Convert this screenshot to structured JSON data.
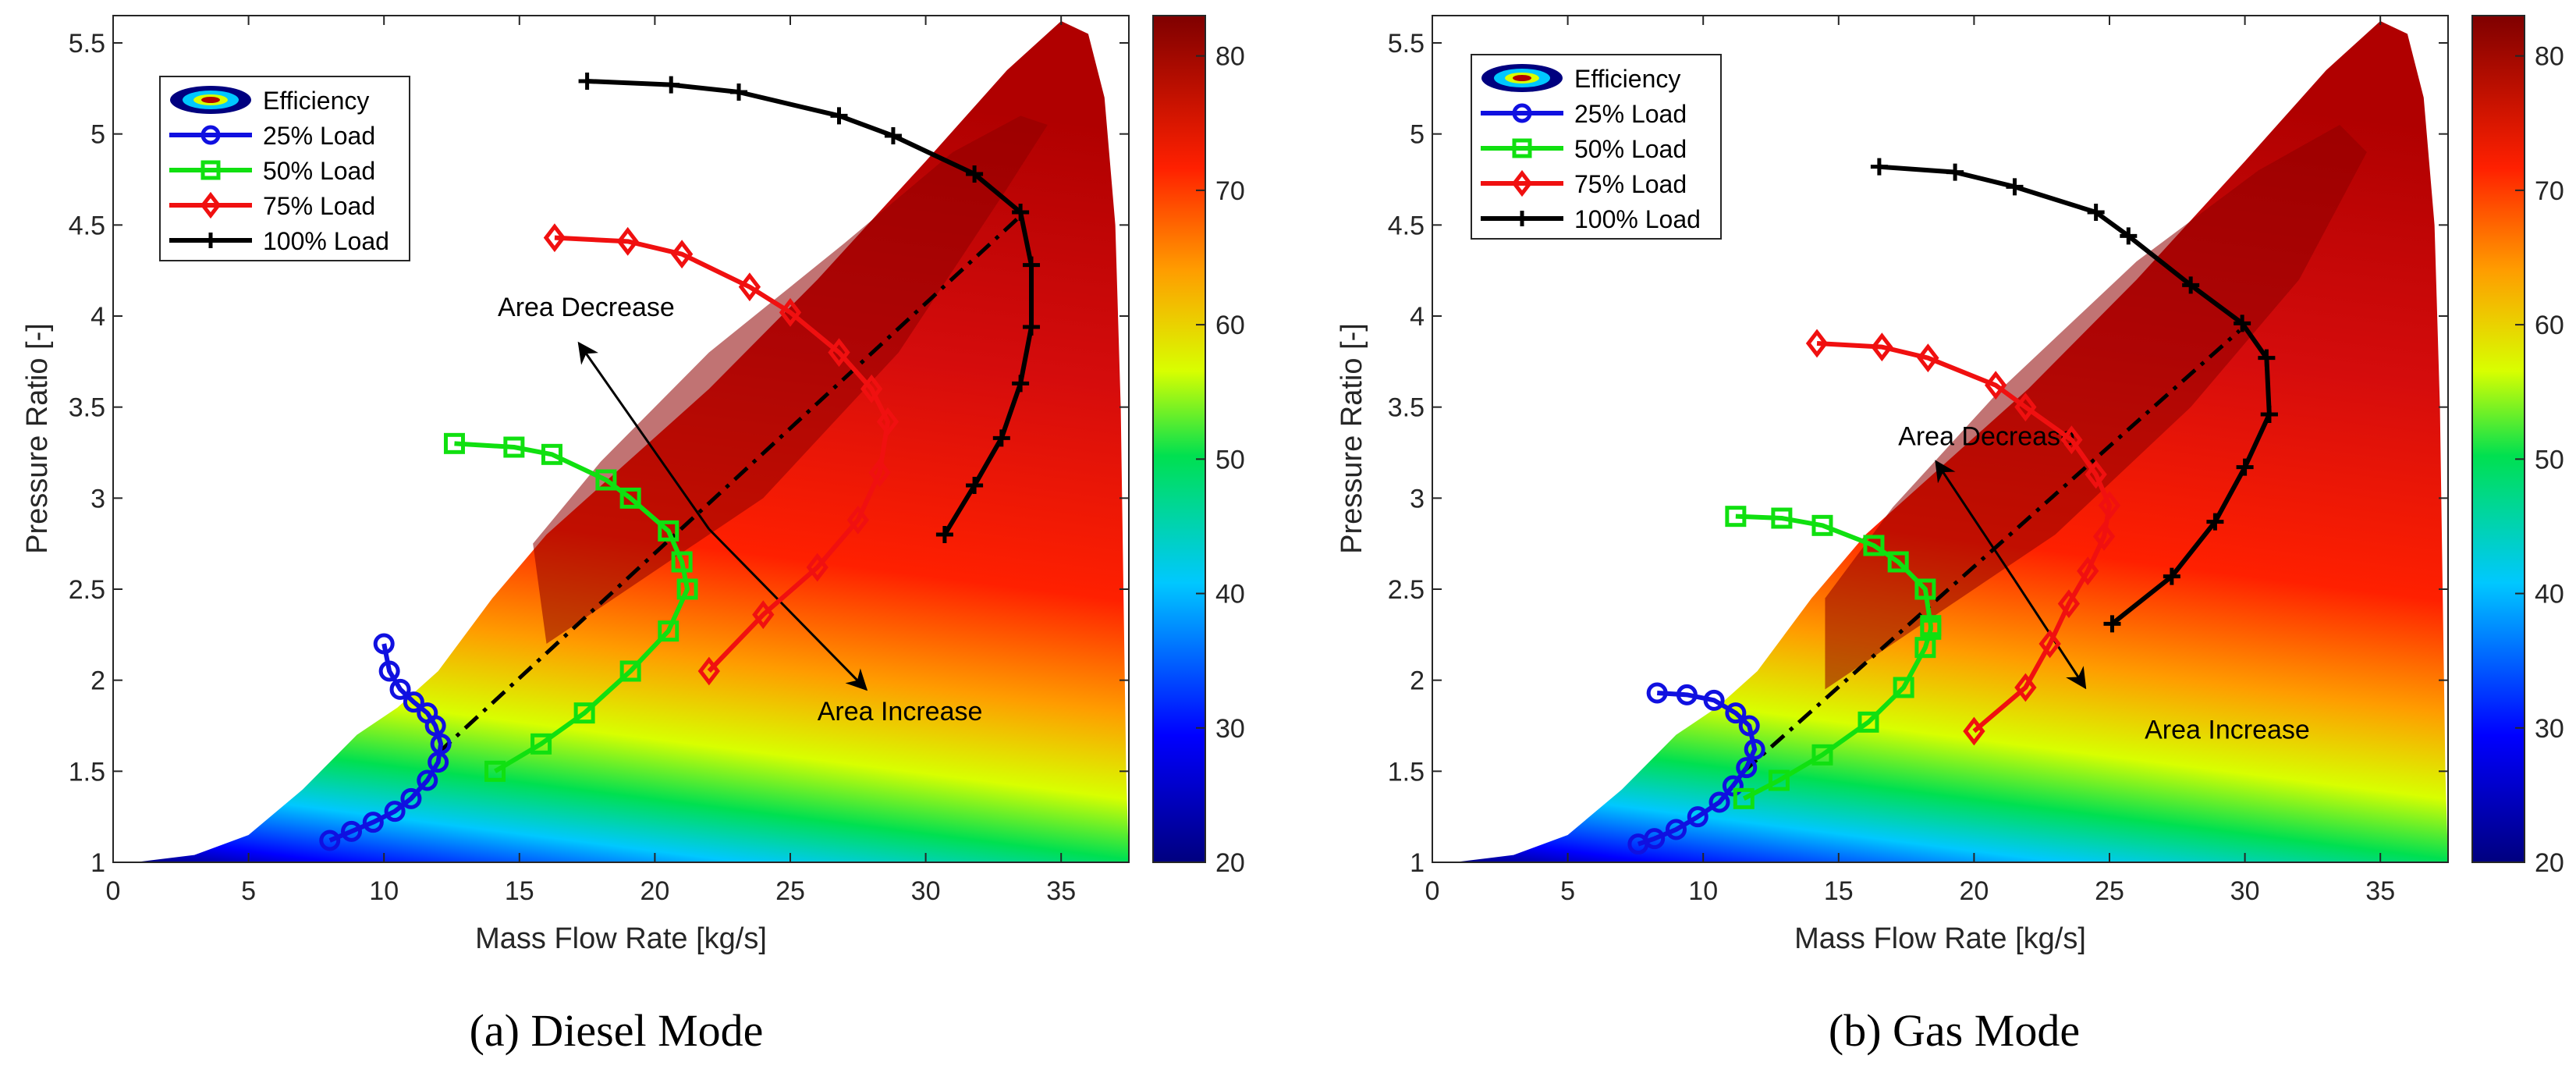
{
  "chart_data": [
    {
      "type": "contour",
      "caption": "(a) Diesel Mode",
      "xlabel": "Mass Flow Rate [kg/s]",
      "ylabel": "Pressure Ratio [-]",
      "xlim": [
        0,
        37.5
      ],
      "ylim": [
        1,
        5.65
      ],
      "xticks": [
        "0",
        "5",
        "10",
        "15",
        "20",
        "25",
        "30",
        "35"
      ],
      "xtick_values": [
        0,
        5,
        10,
        15,
        20,
        25,
        30,
        35
      ],
      "yticks": [
        "1",
        "1.5",
        "2",
        "2.5",
        "3",
        "3.5",
        "4",
        "4.5",
        "5",
        "5.5"
      ],
      "ytick_values": [
        1,
        1.5,
        2,
        2.5,
        3,
        3.5,
        4,
        4.5,
        5,
        5.5
      ],
      "colorbar": {
        "min": 20,
        "max": 83,
        "ticks": [
          "20",
          "30",
          "40",
          "50",
          "60",
          "70",
          "80"
        ],
        "tick_values": [
          20,
          30,
          40,
          50,
          60,
          70,
          80
        ]
      },
      "legend": [
        "Efficiency",
        "25% Load",
        "50% Load",
        "75% Load",
        "100% Load"
      ],
      "map_boundary": [
        [
          0.8,
          1.0
        ],
        [
          3,
          1.04
        ],
        [
          5,
          1.15
        ],
        [
          7,
          1.4
        ],
        [
          9,
          1.7
        ],
        [
          10.5,
          1.85
        ],
        [
          12,
          2.05
        ],
        [
          14,
          2.45
        ],
        [
          16,
          2.8
        ],
        [
          19,
          3.2
        ],
        [
          22,
          3.6
        ],
        [
          26,
          4.2
        ],
        [
          30,
          4.85
        ],
        [
          33,
          5.35
        ],
        [
          35,
          5.62
        ],
        [
          36,
          5.55
        ],
        [
          36.6,
          5.2
        ],
        [
          37,
          4.5
        ],
        [
          37.2,
          3.5
        ],
        [
          37.3,
          2.5
        ],
        [
          37.4,
          1.5
        ],
        [
          37.5,
          1.0
        ]
      ],
      "core_region": [
        [
          16,
          2.2
        ],
        [
          19,
          2.5
        ],
        [
          24,
          3.0
        ],
        [
          29,
          3.8
        ],
        [
          33,
          4.7
        ],
        [
          34.5,
          5.05
        ],
        [
          33.5,
          5.1
        ],
        [
          31,
          4.9
        ],
        [
          27,
          4.4
        ],
        [
          22,
          3.8
        ],
        [
          18,
          3.2
        ],
        [
          15.5,
          2.75
        ]
      ],
      "series": [
        {
          "name": "25% Load",
          "color": "#1010e0",
          "marker": "circle",
          "x": [
            10,
            10.2,
            10.6,
            11.1,
            11.6,
            11.9,
            12.1,
            12.0,
            11.6,
            11.0,
            10.4,
            9.6,
            8.8,
            8.0
          ],
          "y": [
            2.2,
            2.05,
            1.95,
            1.88,
            1.82,
            1.75,
            1.65,
            1.55,
            1.45,
            1.35,
            1.28,
            1.22,
            1.17,
            1.12
          ]
        },
        {
          "name": "50% Load",
          "color": "#10e010",
          "marker": "square",
          "x": [
            12.6,
            14.8,
            16.2,
            18.2,
            19.1,
            20.5,
            21.0,
            21.2,
            20.5,
            19.1,
            17.4,
            15.8,
            14.1
          ],
          "y": [
            3.3,
            3.28,
            3.24,
            3.1,
            3.0,
            2.82,
            2.65,
            2.5,
            2.27,
            2.05,
            1.82,
            1.65,
            1.5
          ]
        },
        {
          "name": "75% Load",
          "color": "#f01010",
          "marker": "diamond",
          "x": [
            16.3,
            19.0,
            21.0,
            23.5,
            25.0,
            26.8,
            28.0,
            28.6,
            28.3,
            27.5,
            26.0,
            24.0,
            22.0
          ],
          "y": [
            4.43,
            4.41,
            4.34,
            4.16,
            4.02,
            3.8,
            3.6,
            3.42,
            3.14,
            2.88,
            2.62,
            2.36,
            2.05
          ]
        },
        {
          "name": "100% Load",
          "color": "#000000",
          "marker": "plus",
          "x": [
            17.5,
            20.6,
            23.1,
            26.8,
            28.8,
            31.8,
            33.5,
            33.9,
            33.9,
            33.5,
            32.8,
            31.8,
            30.7
          ],
          "y": [
            5.29,
            5.27,
            5.23,
            5.1,
            4.99,
            4.78,
            4.57,
            4.28,
            3.94,
            3.63,
            3.33,
            3.07,
            2.8
          ]
        }
      ],
      "trend_line": {
        "x": [
          12.0,
          33.5
        ],
        "y": [
          1.6,
          4.55
        ]
      },
      "annotations": [
        {
          "text": "Area Decrease",
          "x": 14.2,
          "y": 4.0
        },
        {
          "text": "Area Increase",
          "x": 26.0,
          "y": 1.78
        }
      ],
      "arrow": {
        "from": [
          22.0,
          2.83
        ],
        "to1": [
          17.2,
          3.85
        ],
        "to2": [
          27.8,
          1.95
        ]
      }
    },
    {
      "type": "contour",
      "caption": "(b) Gas Mode",
      "xlabel": "Mass Flow Rate [kg/s]",
      "ylabel": "Pressure Ratio [-]",
      "xlim": [
        0,
        37.5
      ],
      "ylim": [
        1,
        5.65
      ],
      "xticks": [
        "0",
        "5",
        "10",
        "15",
        "20",
        "25",
        "30",
        "35"
      ],
      "xtick_values": [
        0,
        5,
        10,
        15,
        20,
        25,
        30,
        35
      ],
      "yticks": [
        "1",
        "1.5",
        "2",
        "2.5",
        "3",
        "3.5",
        "4",
        "4.5",
        "5",
        "5.5"
      ],
      "ytick_values": [
        1,
        1.5,
        2,
        2.5,
        3,
        3.5,
        4,
        4.5,
        5,
        5.5
      ],
      "colorbar": {
        "min": 20,
        "max": 83,
        "ticks": [
          "20",
          "30",
          "40",
          "50",
          "60",
          "70",
          "80"
        ],
        "tick_values": [
          20,
          30,
          40,
          50,
          60,
          70,
          80
        ]
      },
      "legend": [
        "Efficiency",
        "25% Load",
        "50% Load",
        "75% Load",
        "100% Load"
      ],
      "map_boundary": [
        [
          0.8,
          1.0
        ],
        [
          3,
          1.04
        ],
        [
          5,
          1.15
        ],
        [
          7,
          1.4
        ],
        [
          9,
          1.7
        ],
        [
          10.5,
          1.85
        ],
        [
          12,
          2.05
        ],
        [
          14,
          2.45
        ],
        [
          16,
          2.8
        ],
        [
          19,
          3.2
        ],
        [
          22,
          3.6
        ],
        [
          26,
          4.2
        ],
        [
          30,
          4.85
        ],
        [
          33,
          5.35
        ],
        [
          35,
          5.62
        ],
        [
          36,
          5.55
        ],
        [
          36.6,
          5.2
        ],
        [
          37,
          4.5
        ],
        [
          37.2,
          3.5
        ],
        [
          37.3,
          2.5
        ],
        [
          37.4,
          1.5
        ],
        [
          37.5,
          1.0
        ]
      ],
      "core_region": [
        [
          14.5,
          1.95
        ],
        [
          18,
          2.3
        ],
        [
          23,
          2.8
        ],
        [
          28,
          3.5
        ],
        [
          32,
          4.2
        ],
        [
          34.5,
          4.9
        ],
        [
          33.5,
          5.05
        ],
        [
          30.5,
          4.8
        ],
        [
          26,
          4.3
        ],
        [
          21,
          3.6
        ],
        [
          17,
          2.95
        ],
        [
          14.5,
          2.45
        ]
      ],
      "series": [
        {
          "name": "25% Load",
          "color": "#1010e0",
          "marker": "circle",
          "x": [
            8.3,
            9.4,
            10.4,
            11.2,
            11.7,
            11.9,
            11.6,
            11.1,
            10.6,
            9.8,
            9.0,
            8.2,
            7.6
          ],
          "y": [
            1.93,
            1.92,
            1.89,
            1.82,
            1.75,
            1.62,
            1.52,
            1.42,
            1.33,
            1.25,
            1.18,
            1.13,
            1.1
          ]
        },
        {
          "name": "50% Load",
          "color": "#10e010",
          "marker": "square",
          "x": [
            11.2,
            12.9,
            14.4,
            16.3,
            17.2,
            18.2,
            18.4,
            18.4,
            18.2,
            17.4,
            16.1,
            14.4,
            12.8,
            11.5
          ],
          "y": [
            2.9,
            2.89,
            2.85,
            2.74,
            2.65,
            2.5,
            2.3,
            2.28,
            2.18,
            1.96,
            1.77,
            1.59,
            1.45,
            1.35
          ]
        },
        {
          "name": "75% Load",
          "color": "#f01010",
          "marker": "diamond",
          "x": [
            14.2,
            16.6,
            18.3,
            20.8,
            21.9,
            23.6,
            24.5,
            25.0,
            24.8,
            24.2,
            23.5,
            22.8,
            21.9,
            20.0
          ],
          "y": [
            3.85,
            3.83,
            3.77,
            3.62,
            3.5,
            3.32,
            3.13,
            2.96,
            2.79,
            2.6,
            2.42,
            2.2,
            1.96,
            1.72
          ]
        },
        {
          "name": "100% Load",
          "color": "#000000",
          "marker": "plus",
          "x": [
            16.5,
            19.3,
            21.5,
            24.5,
            25.7,
            28.0,
            29.9,
            30.8,
            30.9,
            30.9,
            30.0,
            28.9,
            27.3,
            25.1
          ],
          "y": [
            4.82,
            4.79,
            4.71,
            4.57,
            4.44,
            4.17,
            3.96,
            3.77,
            3.46,
            3.46,
            3.17,
            2.87,
            2.57,
            2.31
          ]
        }
      ],
      "trend_line": {
        "x": [
          11.5,
          29.8
        ],
        "y": [
          1.5,
          3.92
        ]
      },
      "annotations": [
        {
          "text": "Area Decrease",
          "x": 17.2,
          "y": 3.29
        },
        {
          "text": "Area Increase",
          "x": 26.3,
          "y": 1.68
        }
      ],
      "arrow": {
        "from": [
          21.5,
          2.55
        ],
        "to1": [
          18.6,
          3.2
        ],
        "to2": [
          24.1,
          1.96
        ]
      }
    }
  ]
}
